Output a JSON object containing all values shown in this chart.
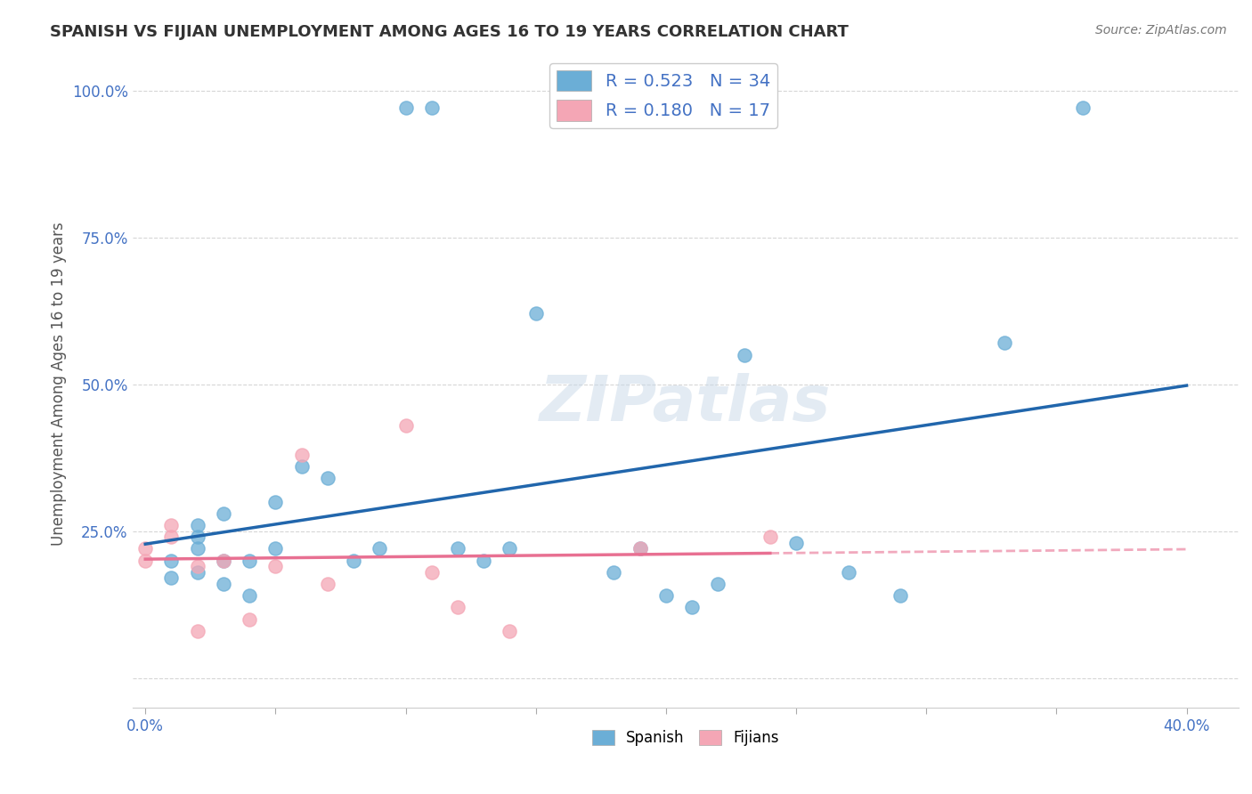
{
  "title": "SPANISH VS FIJIAN UNEMPLOYMENT AMONG AGES 16 TO 19 YEARS CORRELATION CHART",
  "source": "Source: ZipAtlas.com",
  "xlim": [
    -0.005,
    0.42
  ],
  "ylim": [
    -0.05,
    1.05
  ],
  "ylabel": "Unemployment Among Ages 16 to 19 years",
  "R_spanish": 0.523,
  "N_spanish": 34,
  "R_fijian": 0.18,
  "N_fijian": 17,
  "spanish_color": "#6baed6",
  "fijian_color": "#f4a6b5",
  "spanish_line_color": "#2166ac",
  "fijian_line_color": "#e87092",
  "watermark": "ZIPatlas",
  "background_color": "#ffffff",
  "spanish_x": [
    0.01,
    0.01,
    0.02,
    0.02,
    0.02,
    0.02,
    0.03,
    0.03,
    0.03,
    0.04,
    0.04,
    0.05,
    0.05,
    0.06,
    0.07,
    0.08,
    0.09,
    0.1,
    0.11,
    0.12,
    0.13,
    0.14,
    0.15,
    0.18,
    0.19,
    0.2,
    0.21,
    0.22,
    0.23,
    0.25,
    0.27,
    0.29,
    0.33,
    0.36
  ],
  "spanish_y": [
    0.17,
    0.2,
    0.18,
    0.22,
    0.24,
    0.26,
    0.16,
    0.2,
    0.28,
    0.14,
    0.2,
    0.22,
    0.3,
    0.36,
    0.34,
    0.2,
    0.22,
    0.97,
    0.97,
    0.22,
    0.2,
    0.22,
    0.62,
    0.18,
    0.22,
    0.14,
    0.12,
    0.16,
    0.55,
    0.23,
    0.18,
    0.14,
    0.57,
    0.97
  ],
  "fijian_x": [
    0.0,
    0.0,
    0.01,
    0.01,
    0.02,
    0.02,
    0.03,
    0.04,
    0.05,
    0.06,
    0.07,
    0.1,
    0.11,
    0.12,
    0.14,
    0.19,
    0.24
  ],
  "fijian_y": [
    0.22,
    0.2,
    0.26,
    0.24,
    0.19,
    0.08,
    0.2,
    0.1,
    0.19,
    0.38,
    0.16,
    0.43,
    0.18,
    0.12,
    0.08,
    0.22,
    0.24
  ]
}
